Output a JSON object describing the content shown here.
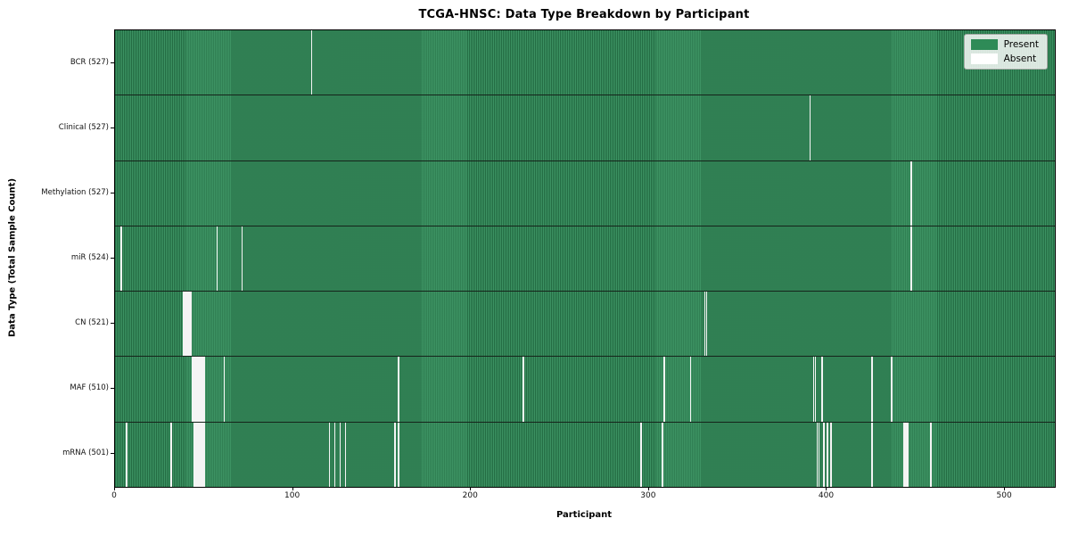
{
  "chart_data": {
    "type": "heatmap",
    "title": "TCGA-HNSC: Data Type Breakdown by Participant",
    "xlabel": "Participant",
    "ylabel": "Data Type (Total Sample Count)",
    "x_ticks": [
      0,
      100,
      200,
      300,
      400,
      500
    ],
    "xlim": [
      0,
      528
    ],
    "total_participants": 528,
    "grid": false,
    "legend": {
      "position": "upper right",
      "entries": [
        {
          "label": "Present",
          "color": "#2E8B57"
        },
        {
          "label": "Absent",
          "color": "#FFFFFF"
        }
      ]
    },
    "colors": {
      "present": "#2E8B57",
      "present_stripe_dark": "rgba(10,35,20,0.30)",
      "absent": "#F4F4F4",
      "axis": "#000000"
    },
    "rows": [
      {
        "name": "BCR",
        "label": "BCR (527)",
        "total": 527,
        "absent": [
          110
        ]
      },
      {
        "name": "Clinical",
        "label": "Clinical (527)",
        "total": 527,
        "absent": [
          390
        ]
      },
      {
        "name": "Methylation",
        "label": "Methylation (527)",
        "total": 527,
        "absent": [
          447
        ]
      },
      {
        "name": "miR",
        "label": "miR (524)",
        "total": 524,
        "absent": [
          3,
          57,
          71,
          447
        ]
      },
      {
        "name": "CN",
        "label": "CN (521)",
        "total": 521,
        "absent": [
          38,
          39,
          40,
          41,
          42,
          331,
          332
        ]
      },
      {
        "name": "MAF",
        "label": "MAF (510)",
        "total": 510,
        "absent": [
          43,
          44,
          45,
          46,
          47,
          48,
          49,
          50,
          61,
          159,
          229,
          308,
          323,
          392,
          393,
          397,
          425,
          436
        ]
      },
      {
        "name": "mRNA",
        "label": "mRNA (501)",
        "total": 501,
        "absent": [
          6,
          31,
          44,
          45,
          46,
          47,
          48,
          49,
          50,
          120,
          123,
          126,
          129,
          157,
          159,
          295,
          307,
          394,
          395,
          398,
          400,
          402,
          425,
          443,
          444,
          445,
          458
        ]
      }
    ]
  }
}
